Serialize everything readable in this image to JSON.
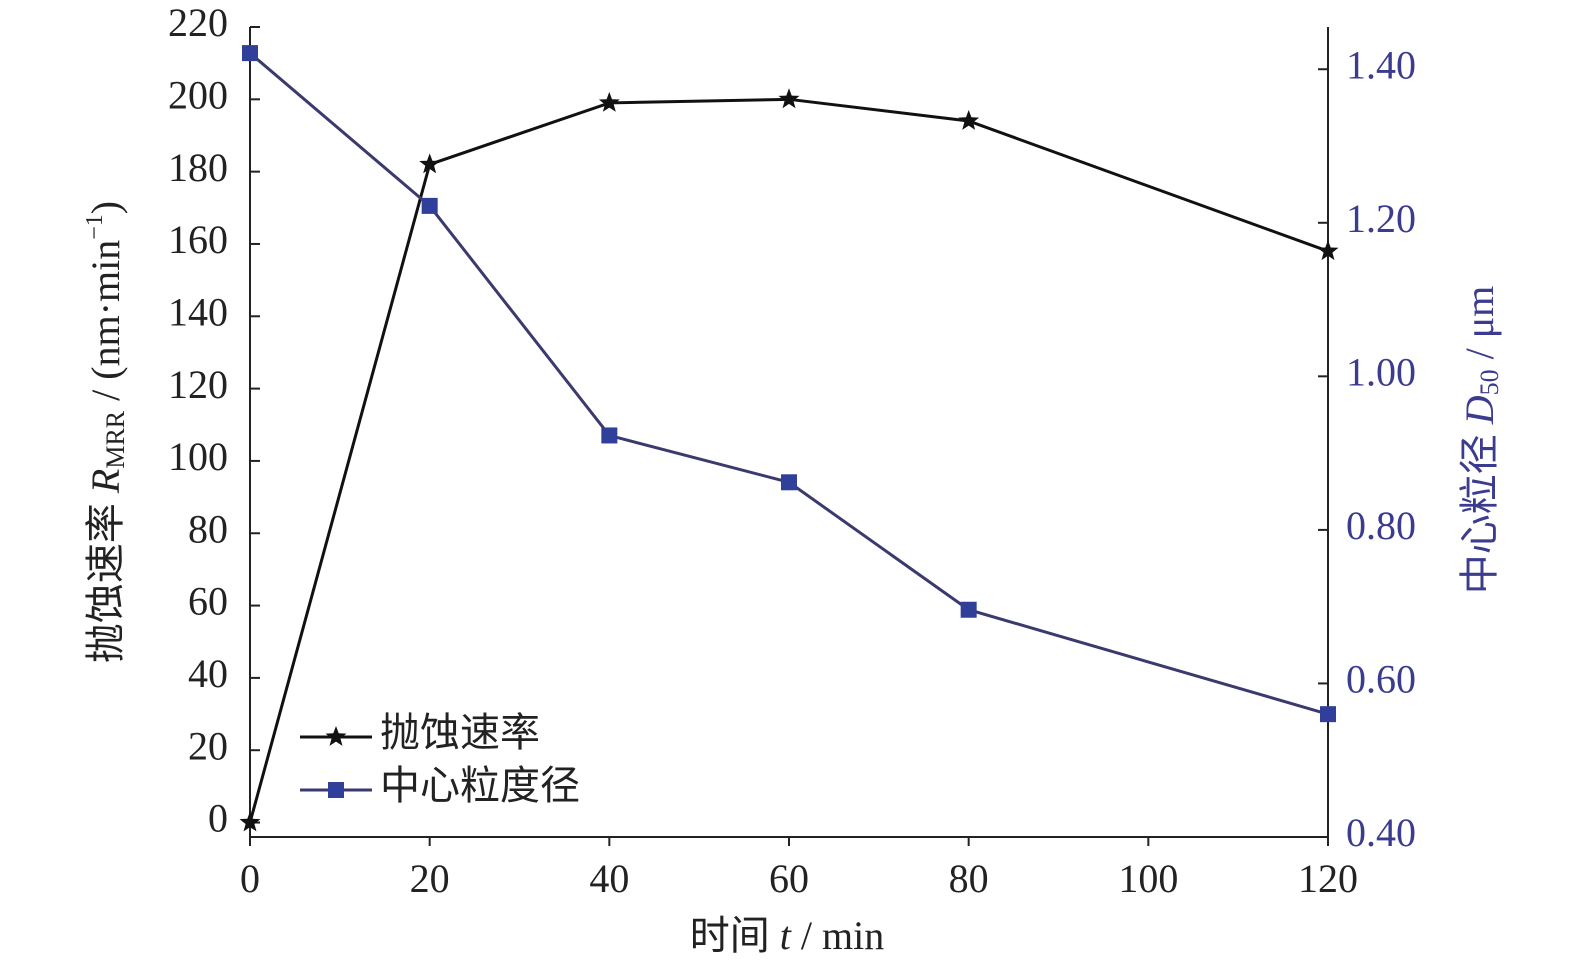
{
  "chart_data": {
    "type": "line",
    "x_label": {
      "prefix": "时间 ",
      "symbol": "t",
      "suffix": " / min"
    },
    "y_label": {
      "prefix": "抛蚀速率 ",
      "symbol": "R",
      "subscript": "MRR",
      "suffix": " / (nm·min",
      "superscript": "−1",
      "end": ")"
    },
    "y2_label": {
      "prefix": "中心粒径 ",
      "symbol": "D",
      "subscript": "50",
      "suffix": " / μm"
    },
    "x": [
      0,
      20,
      40,
      60,
      80,
      120
    ],
    "series": [
      {
        "name": "抛蚀速率",
        "color": "#111111",
        "marker": "star",
        "values": [
          0,
          182,
          199,
          200,
          194,
          158
        ]
      },
      {
        "name": "中心粒度径",
        "color": "#2f3f9a",
        "line_color": "#3a3a6e",
        "marker": "square",
        "axis": "y2",
        "values": [
          1.421,
          1.222,
          0.923,
          0.862,
          0.696,
          0.56
        ]
      }
    ],
    "xlim": [
      0,
      120
    ],
    "xticks": [
      0,
      20,
      40,
      60,
      80,
      100,
      120
    ],
    "ylim": [
      -4,
      220
    ],
    "yticks": [
      0,
      20,
      40,
      60,
      80,
      100,
      120,
      140,
      160,
      180,
      200,
      220
    ],
    "y2lim": [
      0.4,
      1.455
    ],
    "y2ticks": [
      {
        "value": 0.4,
        "label": "0.40"
      },
      {
        "value": 0.6,
        "label": "0.60"
      },
      {
        "value": 0.8,
        "label": "0.80"
      },
      {
        "value": 1.0,
        "label": "1.00"
      },
      {
        "value": 1.2,
        "label": "1.20"
      },
      {
        "value": 1.4,
        "label": "1.40"
      }
    ],
    "y2_color": "#3b3b8f",
    "legend": "lower left"
  }
}
